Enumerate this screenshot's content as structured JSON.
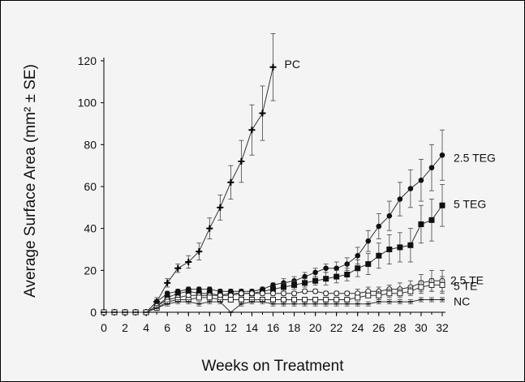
{
  "chart_data": {
    "type": "line",
    "xlabel": "Weeks on Treatment",
    "ylabel": "Average Surface Area (mm² ± SE)",
    "xlim": [
      0,
      32
    ],
    "ylim": [
      0,
      120
    ],
    "x_ticks": [
      0,
      2,
      4,
      6,
      8,
      10,
      12,
      14,
      16,
      18,
      20,
      22,
      24,
      26,
      28,
      30,
      32
    ],
    "y_ticks": [
      0,
      20,
      40,
      60,
      80,
      100,
      120
    ],
    "grid": false,
    "legend": "direct labels at line ends",
    "series": [
      {
        "name": "PC",
        "marker": "plus",
        "x": [
          0,
          1,
          2,
          3,
          4,
          5,
          6,
          7,
          8,
          9,
          10,
          11,
          12,
          13,
          14,
          15,
          16
        ],
        "y": [
          0,
          0,
          0,
          0,
          0,
          5,
          14,
          21,
          24,
          29,
          40,
          50,
          62,
          72,
          87,
          95,
          117
        ],
        "err": [
          0,
          0,
          0,
          0,
          0,
          2,
          2,
          2,
          3,
          4,
          5,
          6,
          8,
          10,
          12,
          13,
          16
        ]
      },
      {
        "name": "2.5 TEG",
        "marker": "filled-circle",
        "x": [
          0,
          1,
          2,
          3,
          4,
          5,
          6,
          7,
          8,
          9,
          10,
          11,
          12,
          13,
          14,
          15,
          16,
          17,
          18,
          19,
          20,
          21,
          22,
          23,
          24,
          25,
          26,
          27,
          28,
          29,
          30,
          31,
          32
        ],
        "y": [
          0,
          0,
          0,
          0,
          0,
          5,
          9,
          10,
          11,
          11,
          11,
          10,
          10,
          10,
          10,
          11,
          13,
          14,
          15,
          17,
          19,
          21,
          21,
          23,
          27,
          34,
          41,
          46,
          54,
          59,
          63,
          69,
          75
        ],
        "err": [
          0,
          0,
          0,
          0,
          0,
          1,
          1,
          1,
          1,
          1,
          1,
          1,
          1,
          1,
          1,
          1,
          1,
          2,
          2,
          2,
          2,
          2,
          3,
          3,
          4,
          5,
          6,
          7,
          8,
          9,
          10,
          11,
          12
        ]
      },
      {
        "name": "5 TEG",
        "marker": "filled-square",
        "x": [
          0,
          1,
          2,
          3,
          4,
          5,
          6,
          7,
          8,
          9,
          10,
          11,
          12,
          13,
          14,
          15,
          16,
          17,
          18,
          19,
          20,
          21,
          22,
          23,
          24,
          25,
          26,
          27,
          28,
          29,
          30,
          31,
          32
        ],
        "y": [
          0,
          0,
          0,
          0,
          0,
          3,
          7,
          9,
          10,
          9,
          9,
          8,
          9,
          9,
          9,
          10,
          11,
          12,
          13,
          14,
          15,
          16,
          17,
          18,
          21,
          23,
          27,
          30,
          31,
          32,
          42,
          44,
          51
        ],
        "err": [
          0,
          0,
          0,
          0,
          0,
          1,
          1,
          1,
          1,
          1,
          1,
          1,
          1,
          1,
          1,
          1,
          1,
          2,
          2,
          2,
          2,
          3,
          3,
          3,
          4,
          5,
          6,
          7,
          7,
          8,
          9,
          10,
          10
        ]
      },
      {
        "name": "2.5 TE",
        "marker": "open-circle",
        "x": [
          0,
          1,
          2,
          3,
          4,
          5,
          6,
          7,
          8,
          9,
          10,
          11,
          12,
          13,
          14,
          15,
          16,
          17,
          18,
          19,
          20,
          21,
          22,
          23,
          24,
          25,
          26,
          27,
          28,
          29,
          30,
          31,
          32
        ],
        "y": [
          0,
          0,
          0,
          0,
          0,
          3,
          6,
          7,
          8,
          8,
          8,
          8,
          8,
          9,
          9,
          9,
          9,
          9,
          9,
          10,
          10,
          9,
          9,
          9,
          9,
          10,
          10,
          11,
          11,
          12,
          14,
          15,
          15
        ],
        "err": [
          0,
          0,
          0,
          0,
          0,
          1,
          1,
          1,
          1,
          1,
          1,
          1,
          1,
          1,
          1,
          1,
          1,
          1,
          1,
          1,
          1,
          1,
          1,
          1,
          2,
          2,
          2,
          2,
          3,
          3,
          4,
          5,
          5
        ]
      },
      {
        "name": "5 TE",
        "marker": "open-square",
        "x": [
          0,
          1,
          2,
          3,
          4,
          5,
          6,
          7,
          8,
          9,
          10,
          11,
          12,
          13,
          14,
          15,
          16,
          17,
          18,
          19,
          20,
          21,
          22,
          23,
          24,
          25,
          26,
          27,
          28,
          29,
          30,
          31,
          32
        ],
        "y": [
          0,
          0,
          0,
          0,
          0,
          2,
          5,
          6,
          6,
          7,
          7,
          6,
          6,
          6,
          6,
          6,
          6,
          6,
          6,
          6,
          6,
          6,
          6,
          6,
          7,
          8,
          8,
          9,
          9,
          10,
          12,
          13,
          13
        ],
        "err": [
          0,
          0,
          0,
          0,
          0,
          1,
          1,
          1,
          1,
          1,
          1,
          1,
          1,
          1,
          1,
          1,
          1,
          1,
          1,
          1,
          1,
          1,
          1,
          1,
          1,
          1,
          2,
          2,
          2,
          2,
          3,
          3,
          4
        ]
      },
      {
        "name": "NC",
        "marker": "dash",
        "x": [
          0,
          1,
          2,
          3,
          4,
          5,
          6,
          7,
          8,
          9,
          10,
          11,
          12,
          13,
          14,
          15,
          16,
          17,
          18,
          19,
          20,
          21,
          22,
          23,
          24,
          25,
          26,
          27,
          28,
          29,
          30,
          31,
          32
        ],
        "y": [
          0,
          0,
          0,
          0,
          0,
          2,
          4,
          5,
          5,
          4,
          5,
          5,
          0,
          4,
          5,
          5,
          4,
          4,
          4,
          4,
          4,
          4,
          4,
          4,
          4,
          4,
          5,
          5,
          5,
          5,
          6,
          6,
          6
        ],
        "err": [
          0,
          0,
          0,
          0,
          0,
          1,
          1,
          1,
          1,
          1,
          1,
          1,
          0,
          1,
          1,
          1,
          1,
          1,
          1,
          1,
          1,
          1,
          1,
          1,
          1,
          1,
          1,
          1,
          1,
          1,
          1,
          1,
          1
        ]
      }
    ]
  }
}
